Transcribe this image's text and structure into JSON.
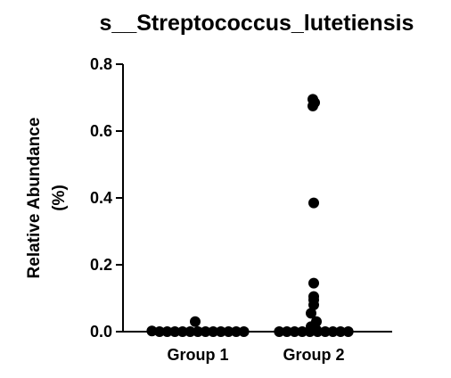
{
  "chart_data": {
    "type": "scatter",
    "title": "s__Streptococcus_lutetiensis",
    "xlabel": "",
    "ylabel_lines": [
      "Relative Abundance",
      "(%)"
    ],
    "categories": [
      "Group 1",
      "Group 2"
    ],
    "ylim": [
      0,
      0.8
    ],
    "yticks": [
      0.0,
      0.2,
      0.4,
      0.6,
      0.8
    ],
    "ytick_labels": [
      "0.0",
      "0.2",
      "0.4",
      "0.6",
      "0.8"
    ],
    "grid": false,
    "legend": "none",
    "point_color": "#000000",
    "median_color": "#8b1a1a",
    "series": [
      {
        "category": "Group 1",
        "median": 0.0,
        "values": [
          0.03,
          0.002,
          0.0,
          0.0,
          0.0,
          0.0,
          0.0,
          0.0,
          0.0,
          0.0,
          0.0,
          0.0,
          0.0,
          0.0
        ]
      },
      {
        "category": "Group 2",
        "median": 0.0,
        "values": [
          0.695,
          0.685,
          0.675,
          0.385,
          0.145,
          0.105,
          0.095,
          0.08,
          0.055,
          0.03,
          0.015,
          0.005,
          0.0,
          0.0,
          0.0,
          0.0,
          0.0,
          0.0,
          0.0,
          0.0,
          0.0,
          0.0
        ]
      }
    ]
  }
}
